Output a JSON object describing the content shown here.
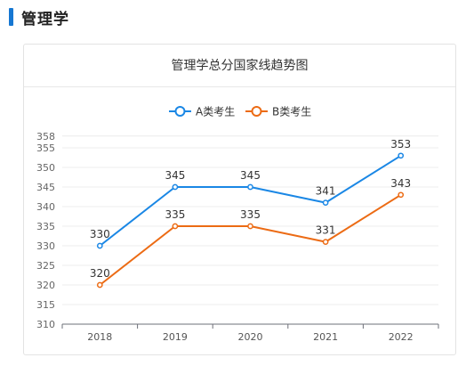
{
  "section": {
    "title": "管理学"
  },
  "chart_data": {
    "type": "line",
    "title": "管理学总分国家线趋势图",
    "xlabel": "",
    "ylabel": "",
    "categories": [
      "2018",
      "2019",
      "2020",
      "2021",
      "2022"
    ],
    "series": [
      {
        "name": "A类考生",
        "values": [
          330,
          345,
          345,
          341,
          353
        ],
        "color": "#1a87e5"
      },
      {
        "name": "B类考生",
        "values": [
          320,
          335,
          335,
          331,
          343
        ],
        "color": "#ec6b14"
      }
    ],
    "ylim": [
      310,
      358
    ],
    "yticks": [
      "358",
      "355",
      "350",
      "345",
      "340",
      "335",
      "330",
      "325",
      "320",
      "315",
      "310"
    ],
    "grid": true,
    "legend": "top-center"
  }
}
